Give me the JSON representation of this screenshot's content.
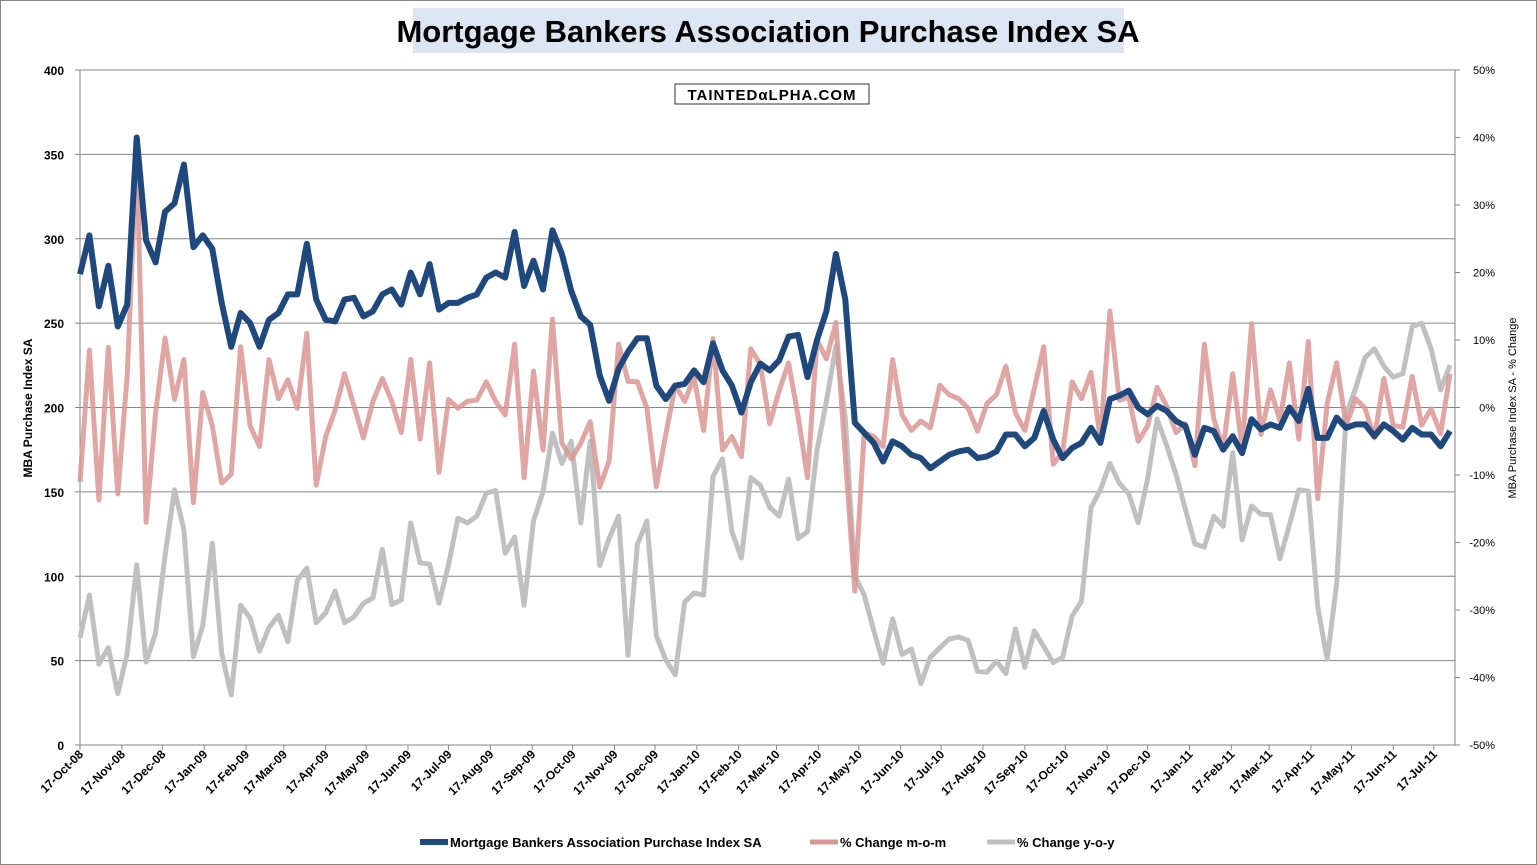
{
  "chart_data": {
    "type": "line",
    "title": "Mortgage Bankers Association Purchase Index SA",
    "watermark": "TAINTEDαLPHA.COM",
    "ylabel": "MBA Purchase Index SA",
    "y2label": "MBA Purchase Index SA - % Change",
    "ylim": [
      0,
      400
    ],
    "y2lim": [
      -50,
      50
    ],
    "yticks": [
      "0",
      "50",
      "100",
      "150",
      "200",
      "250",
      "300",
      "350",
      "400"
    ],
    "y2ticks": [
      "-50%",
      "-40%",
      "-30%",
      "-20%",
      "-10%",
      "0%",
      "10%",
      "20%",
      "30%",
      "40%",
      "50%"
    ],
    "grid": true,
    "legend_position": "bottom",
    "xticks": [
      "17-Oct-08",
      "17-Nov-08",
      "17-Dec-08",
      "17-Jan-09",
      "17-Feb-09",
      "17-Mar-09",
      "17-Apr-09",
      "17-May-09",
      "17-Jun-09",
      "17-Jul-09",
      "17-Aug-09",
      "17-Sep-09",
      "17-Oct-09",
      "17-Nov-09",
      "17-Dec-09",
      "17-Jan-10",
      "17-Feb-10",
      "17-Mar-10",
      "17-Apr-10",
      "17-May-10",
      "17-Jun-10",
      "17-Jul-10",
      "17-Aug-10",
      "17-Sep-10",
      "17-Oct-10",
      "17-Nov-10",
      "17-Dec-10",
      "17-Jan-11",
      "17-Feb-11",
      "17-Mar-11",
      "17-Apr-11",
      "17-May-11",
      "17-Jun-11",
      "17-Jul-11"
    ],
    "x": [
      "2008-10-17",
      "2008-10-24",
      "2008-10-31",
      "2008-11-07",
      "2008-11-14",
      "2008-11-21",
      "2008-11-28",
      "2008-12-05",
      "2008-12-12",
      "2008-12-19",
      "2008-12-26",
      "2009-01-02",
      "2009-01-09",
      "2009-01-16",
      "2009-01-23",
      "2009-01-30",
      "2009-02-06",
      "2009-02-13",
      "2009-02-20",
      "2009-02-27",
      "2009-03-06",
      "2009-03-13",
      "2009-03-20",
      "2009-03-27",
      "2009-04-03",
      "2009-04-10",
      "2009-04-17",
      "2009-04-24",
      "2009-05-01",
      "2009-05-08",
      "2009-05-15",
      "2009-05-22",
      "2009-05-29",
      "2009-06-05",
      "2009-06-12",
      "2009-06-19",
      "2009-06-26",
      "2009-07-03",
      "2009-07-10",
      "2009-07-17",
      "2009-07-24",
      "2009-07-31",
      "2009-08-07",
      "2009-08-14",
      "2009-08-21",
      "2009-08-28",
      "2009-09-04",
      "2009-09-11",
      "2009-09-18",
      "2009-09-25",
      "2009-10-02",
      "2009-10-09",
      "2009-10-16",
      "2009-10-23",
      "2009-10-30",
      "2009-11-06",
      "2009-11-13",
      "2009-11-20",
      "2009-11-27",
      "2009-12-04",
      "2009-12-11",
      "2009-12-18",
      "2009-12-25",
      "2010-01-01",
      "2010-01-08",
      "2010-01-15",
      "2010-01-22",
      "2010-01-29",
      "2010-02-05",
      "2010-02-12",
      "2010-02-19",
      "2010-02-26",
      "2010-03-05",
      "2010-03-12",
      "2010-03-19",
      "2010-03-26",
      "2010-04-02",
      "2010-04-09",
      "2010-04-16",
      "2010-04-23",
      "2010-04-30",
      "2010-05-07",
      "2010-05-14",
      "2010-05-21",
      "2010-05-28",
      "2010-06-04",
      "2010-06-11",
      "2010-06-18",
      "2010-06-25",
      "2010-07-02",
      "2010-07-09",
      "2010-07-16",
      "2010-07-23",
      "2010-07-30",
      "2010-08-06",
      "2010-08-13",
      "2010-08-20",
      "2010-08-27",
      "2010-09-03",
      "2010-09-10",
      "2010-09-17",
      "2010-09-24",
      "2010-10-01",
      "2010-10-08",
      "2010-10-15",
      "2010-10-22",
      "2010-10-29",
      "2010-11-05",
      "2010-11-12",
      "2010-11-19",
      "2010-11-26",
      "2010-12-03",
      "2010-12-10",
      "2010-12-17",
      "2010-12-24",
      "2010-12-31",
      "2011-01-07",
      "2011-01-14",
      "2011-01-21",
      "2011-01-28",
      "2011-02-04",
      "2011-02-11",
      "2011-02-18",
      "2011-02-25",
      "2011-03-04",
      "2011-03-11",
      "2011-03-18",
      "2011-03-25",
      "2011-04-01",
      "2011-04-08",
      "2011-04-15",
      "2011-04-22",
      "2011-04-29",
      "2011-05-06",
      "2011-05-13",
      "2011-05-20",
      "2011-05-27",
      "2011-06-03",
      "2011-06-10",
      "2011-06-17",
      "2011-06-24",
      "2011-07-01",
      "2011-07-08",
      "2011-07-15",
      "2011-07-22",
      "2011-07-29"
    ],
    "series": [
      {
        "name": "Mortgage Bankers Association Purchase Index SA",
        "axis": "left",
        "color": "#1f497d",
        "values": [
          279,
          302,
          260,
          284,
          248,
          261,
          360,
          299,
          286,
          316,
          321,
          344,
          295,
          302,
          294,
          262,
          236,
          256,
          250,
          236,
          252,
          256,
          267,
          267,
          297,
          264,
          252,
          251,
          264,
          265,
          254,
          257,
          267,
          270,
          261,
          280,
          267,
          285,
          258,
          262,
          262,
          265,
          267,
          277,
          280,
          277,
          304,
          272,
          287,
          270,
          305,
          291,
          269,
          254,
          249,
          219,
          204,
          223,
          233,
          241,
          241,
          213,
          205,
          213,
          214,
          222,
          215,
          238,
          222,
          213,
          197,
          215,
          226,
          222,
          228,
          242,
          243,
          218,
          240,
          257,
          291,
          264,
          191,
          185,
          179,
          168,
          180,
          177,
          172,
          170,
          164,
          168,
          172,
          174,
          175,
          170,
          171,
          174,
          184,
          184,
          177,
          182,
          198,
          181,
          170,
          176,
          179,
          188,
          179,
          205,
          207,
          210,
          200,
          196,
          201,
          198,
          192,
          189,
          172,
          188,
          186,
          175,
          183,
          173,
          193,
          187,
          190,
          188,
          200,
          192,
          211,
          182,
          182,
          194,
          188,
          190,
          190,
          183,
          190,
          186,
          181,
          188,
          184,
          184,
          177,
          186
        ]
      },
      {
        "name": "% Change m-o-m",
        "axis": "right",
        "color": "#d99694",
        "values": [
          -11,
          8.5,
          -13.7,
          8.9,
          -12.8,
          4.8,
          38,
          -17,
          -0.8,
          10.3,
          1.2,
          7.1,
          -14.1,
          2.2,
          -2.7,
          -11.2,
          -9.9,
          9,
          -2.7,
          -5.8,
          7.1,
          1.3,
          4.1,
          -0.1,
          11,
          -11.5,
          -4.3,
          -0.4,
          5,
          0.2,
          -4.5,
          0.9,
          4.3,
          0.9,
          -3.7,
          7.1,
          -4.7,
          6.6,
          -9.6,
          1.2,
          -0.1,
          0.9,
          1.1,
          3.8,
          0.9,
          -1.1,
          9.4,
          -10.4,
          5.4,
          -6.3,
          13.1,
          -5.3,
          -7.6,
          -5.3,
          -2.1,
          -11.8,
          -7.9,
          9.4,
          3.9,
          3.8,
          -0.1,
          -11.7,
          -4,
          3.3,
          0.9,
          4.5,
          -3.4,
          10.2,
          -6.3,
          -4.3,
          -7.3,
          8.7,
          6.4,
          -2.4,
          2.5,
          6.6,
          -1.3,
          -10.4,
          10,
          7.2,
          12.6,
          -7.3,
          -27.2,
          -3.7,
          -4.3,
          -5.8,
          7.1,
          -1.1,
          -3.4,
          -2,
          -3,
          3.3,
          1.9,
          1.3,
          -0.1,
          -3.5,
          0.6,
          1.9,
          6.1,
          -0.8,
          -3.4,
          2.8,
          9,
          -8.4,
          -6.6,
          3.8,
          1.3,
          5.2,
          -4.7,
          14.3,
          1.1,
          1.5,
          -5,
          -2.7,
          3,
          0.2,
          -3.7,
          -2.4,
          -8.6,
          9.4,
          -1.7,
          -6,
          5,
          -6,
          12.4,
          -4,
          2.6,
          -1.9,
          6.6,
          -4.7,
          9.8,
          -13.5,
          0.6,
          6.6,
          -2.7,
          1.3,
          -0.1,
          -4.5,
          4.3,
          -2.7,
          -2.9,
          4.6,
          -2.6,
          -0.2,
          -3.9,
          5
        ]
      },
      {
        "name": "% Change y-o-y",
        "axis": "right",
        "color": "#c0c0c0",
        "values": [
          -34.1,
          -27.8,
          -38,
          -35.6,
          -42.4,
          -36.4,
          -23.3,
          -37.7,
          -33.4,
          -22,
          -12.2,
          -18.1,
          -36.9,
          -32.3,
          -20.1,
          -36.4,
          -42.6,
          -29.3,
          -31.2,
          -36.1,
          -32.6,
          -30.8,
          -34.7,
          -25.6,
          -23.8,
          -31.9,
          -30.4,
          -27.2,
          -31.9,
          -31,
          -29,
          -28.2,
          -21,
          -29.2,
          -28.5,
          -17.1,
          -23,
          -23.2,
          -29,
          -23.3,
          -16.4,
          -17.1,
          -16.1,
          -12.7,
          -12.3,
          -21.6,
          -19.2,
          -29.3,
          -16.8,
          -12.5,
          -3.8,
          -8.3,
          -5,
          -17.1,
          -5,
          -23.4,
          -19.4,
          -16.1,
          -36.7,
          -20.3,
          -16.8,
          -33.8,
          -37.4,
          -39.6,
          -28.8,
          -27.5,
          -27.8,
          -10.2,
          -7.6,
          -18.4,
          -22.3,
          -10.4,
          -11.5,
          -14.8,
          -16.1,
          -10.6,
          -19.4,
          -18.4,
          -6.3,
          0.9,
          9.1,
          -1.6,
          -24.9,
          -27.8,
          -33,
          -37.9,
          -31.3,
          -36.6,
          -35.8,
          -40.9,
          -37,
          -35.6,
          -34.3,
          -34,
          -34.5,
          -39.1,
          -39.2,
          -37.6,
          -39.4,
          -32.8,
          -38.5,
          -33.1,
          -35.4,
          -37.8,
          -37,
          -30.9,
          -28.7,
          -14.8,
          -12.2,
          -8.3,
          -11.2,
          -12.8,
          -17.1,
          -10.5,
          -1.7,
          -5.6,
          -9.9,
          -15.1,
          -20.2,
          -20.7,
          -16.1,
          -17.6,
          -6.7,
          -19.6,
          -14.6,
          -15.8,
          -15.9,
          -22.4,
          -17.4,
          -12.2,
          -12.4,
          -29.5,
          -37.3,
          -26.2,
          -1.1,
          2.8,
          7.4,
          8.7,
          6.1,
          4.5,
          5,
          12,
          12.5,
          8.7,
          2.6,
          6.3
        ]
      }
    ]
  }
}
